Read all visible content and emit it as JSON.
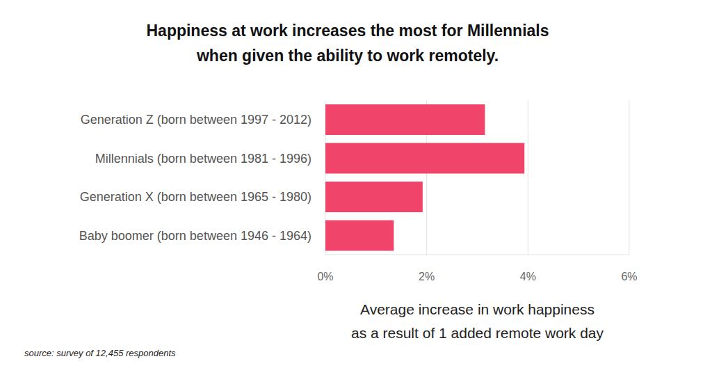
{
  "chart_data": {
    "type": "bar",
    "orientation": "horizontal",
    "title": "Happiness at work increases the most for Millennials\nwhen given the ability to work remotely.",
    "categories": [
      "Generation Z (born between 1997 - 2012)",
      "Millennials (born between 1981 - 1996)",
      "Generation X (born between 1965 - 1980)",
      "Baby boomer (born between 1946 - 1964)"
    ],
    "values": [
      3.15,
      3.93,
      1.92,
      1.35
    ],
    "color": "#f0446b",
    "xlim": [
      0,
      6
    ],
    "xticks": [
      {
        "value": 0,
        "label": "0%"
      },
      {
        "value": 2,
        "label": "2%"
      },
      {
        "value": 4,
        "label": "4%"
      },
      {
        "value": 6,
        "label": "6%"
      }
    ],
    "x_label": "Average increase in work happiness\nas a result of 1 added remote work day",
    "grid": true,
    "annotations": [
      "source: survey of 12,455 respondents"
    ]
  }
}
